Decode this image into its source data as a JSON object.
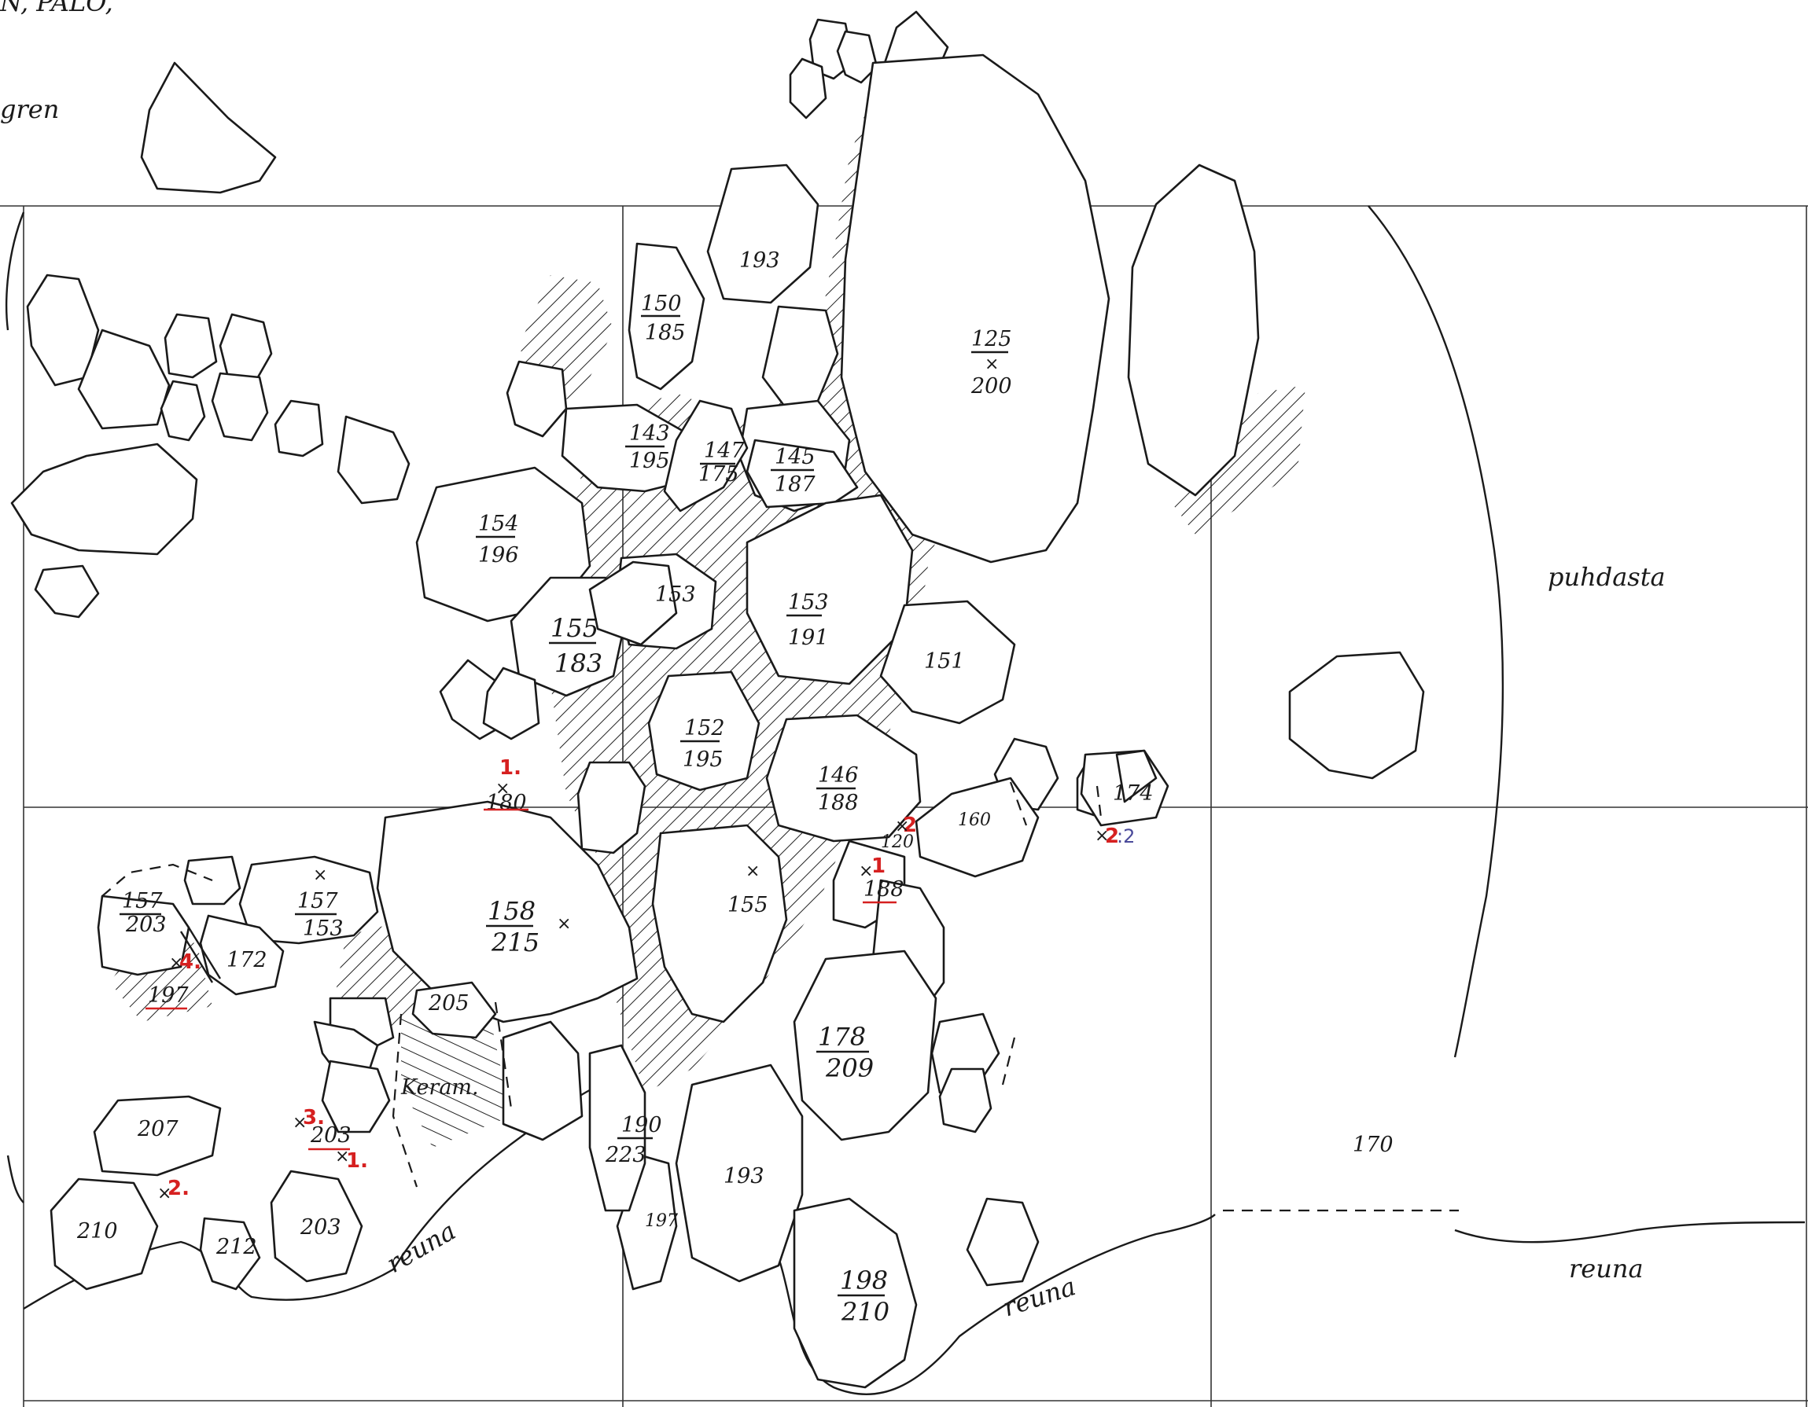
{
  "header_fragments": {
    "left": "N, PALO,",
    "name": "gren"
  },
  "areas": {
    "clean": "puhdasta",
    "edge": "reuna",
    "ceramics": "Keram."
  },
  "labels": {
    "s_125_200_top": "125",
    "s_125_200_bottom": "200",
    "s_193_top": "193",
    "s_150_185_top": "150",
    "s_150_185_bottom": "185",
    "s_143_195_top": "143",
    "s_143_195_bottom": "195",
    "s_147_175_top": "147",
    "s_147_175_bottom": "175",
    "s_145_187_top": "145",
    "s_145_187_bottom": "187",
    "s_154_196_top": "154",
    "s_154_196_bottom": "196",
    "s_153a": "153",
    "s_153_191_top": "153",
    "s_153_191_bottom": "191",
    "s_155_183_top": "155",
    "s_155_183_bottom": "183",
    "s_151": "151",
    "s_152_195_top": "152",
    "s_152_195_bottom": "195",
    "s_146_188_top": "146",
    "s_146_188_bottom": "188",
    "s_174": "174",
    "s_160": "160",
    "p_180": "180",
    "p_120": "120",
    "p_188": "188",
    "s_157_203_top": "157",
    "s_157_203_bottom": "203",
    "s_157_153_top": "157",
    "s_157_153_bottom": "153",
    "s_158_215_top": "158",
    "s_158_215_bottom": "215",
    "s_155b": "155",
    "s_172": "172",
    "p_197": "197",
    "s_205": "205",
    "s_178_209_top": "178",
    "s_178_209_bottom": "209",
    "s_207": "207",
    "p_203": "203",
    "s_190_223_top": "190",
    "s_190_223_bottom": "223",
    "s_193b": "193",
    "s_210": "210",
    "s_212": "212",
    "s_203b": "203",
    "s_197b": "197",
    "s_198_210_top": "198",
    "s_198_210_bottom": "210",
    "s_170": "170"
  },
  "finds": {
    "f1_top": "1.",
    "f1_mid": "1",
    "f2a": "2",
    "f2b": "2",
    "f2b_suffix": ":2",
    "f4": "4.",
    "f3": "3.",
    "f1_bottom": "1.",
    "f2c": "2."
  }
}
